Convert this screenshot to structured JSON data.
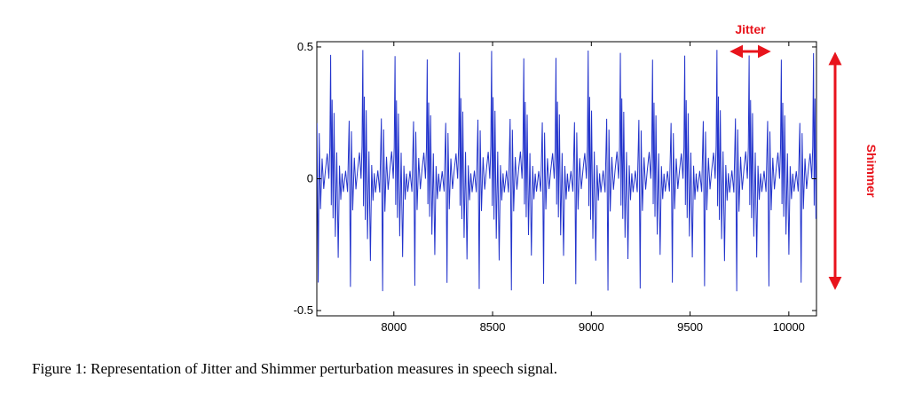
{
  "chart_data": {
    "type": "line",
    "title": "",
    "xlabel": "",
    "ylabel": "",
    "xlim": [
      7610,
      10140
    ],
    "ylim": [
      -0.52,
      0.52
    ],
    "xticks": [
      8000,
      8500,
      9000,
      9500,
      10000
    ],
    "xtick_labels": [
      "8000",
      "8500",
      "9000",
      "9500",
      "10000"
    ],
    "yticks": [
      -0.5,
      0,
      0.5
    ],
    "ytick_labels": [
      "-0.5",
      "0",
      "0.5"
    ],
    "grid": false,
    "series": [
      {
        "color": "#2233cc",
        "waveform": "quasi-periodic voiced speech signal",
        "period_samples": 163,
        "first_peak_x": 7680,
        "peak_amplitude": 0.47,
        "trough_amplitude": -0.41
      }
    ],
    "annotations": {
      "jitter": {
        "label": "Jitter",
        "x_from": 9725,
        "x_to": 9885,
        "color": "#e8141c"
      },
      "shimmer": {
        "label": "Shimmer",
        "y_from": 0.47,
        "y_to": -0.41,
        "color": "#e8141c"
      }
    }
  },
  "caption": "Figure 1: Representation of Jitter and Shimmer perturbation measures in speech signal."
}
